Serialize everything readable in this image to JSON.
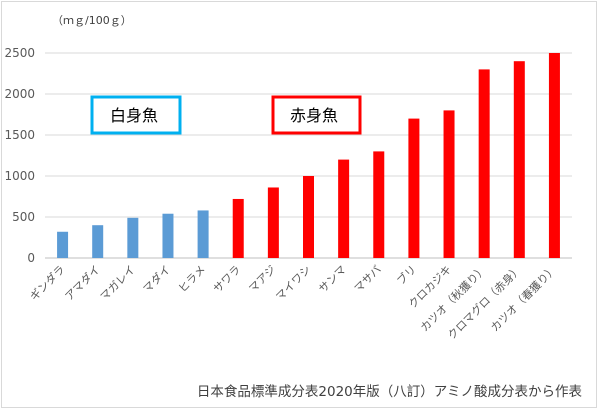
{
  "chart_data": {
    "type": "bar",
    "unit_label": "（ｍｇ/100ｇ）",
    "ylim": [
      0,
      2500
    ],
    "yticks": [
      0,
      500,
      1000,
      1500,
      2000,
      2500
    ],
    "grid": true,
    "categories": [
      "ギンダラ",
      "アマダイ",
      "マガレイ",
      "マダイ",
      "ヒラメ",
      "サワラ",
      "マアジ",
      "マイワシ",
      "サンマ",
      "マサバ",
      "ブリ",
      "クロカジキ",
      "カツオ（秋獲り）",
      "クロマグロ（赤身）",
      "カツオ（春獲り）"
    ],
    "values": [
      320,
      400,
      490,
      540,
      580,
      720,
      860,
      1000,
      1200,
      1300,
      1700,
      1800,
      2300,
      2400,
      2500
    ],
    "groups": [
      "white",
      "white",
      "white",
      "white",
      "white",
      "red",
      "red",
      "red",
      "red",
      "red",
      "red",
      "red",
      "red",
      "red",
      "red"
    ],
    "colors": {
      "white": "#5b9bd5",
      "red": "#ff0000"
    },
    "legend": [
      {
        "label": "白身魚",
        "key": "white",
        "border": "#00b0f0"
      },
      {
        "label": "赤身魚",
        "key": "red",
        "border": "#ff0000"
      }
    ]
  },
  "source_note": "日本食品標準成分表2020年版（八訂）アミノ酸成分表から作表"
}
